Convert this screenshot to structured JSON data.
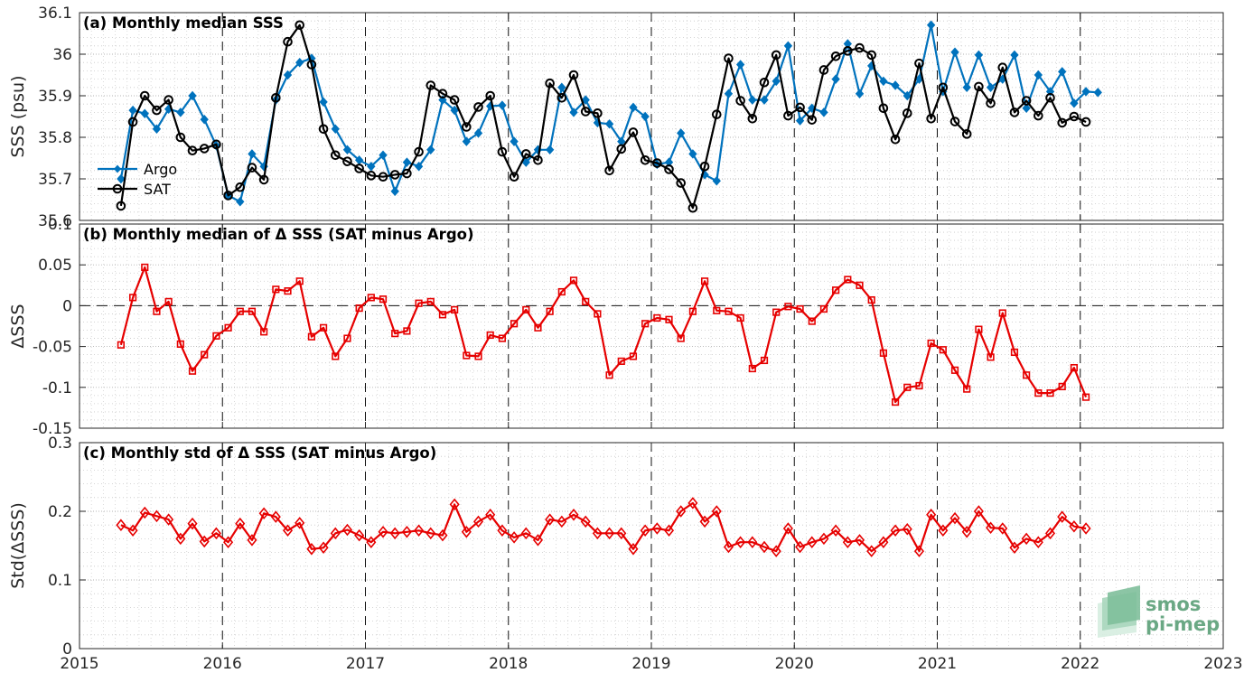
{
  "chart_data": [
    {
      "type": "line",
      "title": "(a) Monthly median SSS",
      "xlabel": "",
      "ylabel": "SSS (psu)",
      "xlim": [
        2015,
        2023
      ],
      "ylim": [
        35.6,
        36.1
      ],
      "xticks": [
        "2015",
        "2016",
        "2017",
        "2018",
        "2019",
        "2020",
        "2021",
        "2022",
        "2023"
      ],
      "yticks": [
        "35.6",
        "35.7",
        "35.8",
        "35.9",
        "36",
        "36.1"
      ],
      "grid": true,
      "legend": "bottom-left",
      "x_start": 2015.29,
      "x_step_months": 1,
      "series": [
        {
          "name": "Argo",
          "color": "#0072bd",
          "marker": "diamond",
          "values": [
            35.7,
            35.865,
            35.857,
            35.82,
            35.868,
            35.86,
            35.9,
            35.843,
            35.78,
            35.66,
            35.645,
            35.76,
            35.73,
            35.89,
            35.95,
            35.98,
            35.99,
            35.885,
            35.82,
            35.77,
            35.745,
            35.73,
            35.757,
            35.67,
            35.74,
            35.73,
            35.77,
            35.89,
            35.865,
            35.79,
            35.81,
            35.875,
            35.877,
            35.79,
            35.74,
            35.77,
            35.77,
            35.92,
            35.86,
            35.89,
            35.835,
            35.832,
            35.79,
            35.872,
            35.85,
            35.735,
            35.74,
            35.81,
            35.76,
            35.71,
            35.695,
            35.905,
            35.975,
            35.89,
            35.89,
            35.935,
            36.02,
            35.84,
            35.87,
            35.86,
            35.94,
            36.025,
            35.905,
            35.972,
            35.935,
            35.925,
            35.9,
            35.94,
            36.07,
            35.91,
            36.005,
            35.92,
            35.998,
            35.92,
            35.94,
            35.998,
            35.87,
            35.95,
            35.91,
            35.958,
            35.882,
            35.91,
            35.908
          ]
        },
        {
          "name": "SAT",
          "color": "#000000",
          "marker": "circle",
          "values": [
            35.635,
            35.837,
            35.9,
            35.865,
            35.89,
            35.8,
            35.768,
            35.773,
            35.783,
            35.66,
            35.68,
            35.727,
            35.698,
            35.895,
            36.03,
            36.07,
            35.975,
            35.82,
            35.757,
            35.742,
            35.725,
            35.708,
            35.705,
            35.71,
            35.713,
            35.765,
            35.925,
            35.905,
            35.89,
            35.825,
            35.873,
            35.9,
            35.765,
            35.705,
            35.76,
            35.745,
            35.93,
            35.895,
            35.95,
            35.862,
            35.858,
            35.72,
            35.772,
            35.812,
            35.745,
            35.738,
            35.723,
            35.69,
            35.63,
            35.73,
            35.855,
            35.99,
            35.888,
            35.845,
            35.932,
            35.998,
            35.852,
            35.872,
            35.842,
            35.962,
            35.995,
            36.008,
            36.015,
            35.998,
            35.87,
            35.795,
            35.858,
            35.978,
            35.845,
            35.92,
            35.838,
            35.808,
            35.922,
            35.882,
            35.968,
            35.86,
            35.888,
            35.852,
            35.895,
            35.835,
            35.85,
            35.837
          ]
        }
      ]
    },
    {
      "type": "line",
      "title": "(b) Monthly median of Δ SSS (SAT minus Argo)",
      "xlabel": "",
      "ylabel": "ΔSSS",
      "xlim": [
        2015,
        2023
      ],
      "ylim": [
        -0.15,
        0.1
      ],
      "yticks": [
        "-0.15",
        "-0.1",
        "-0.05",
        "0",
        "0.05",
        "0.1"
      ],
      "grid": true,
      "reference_line": 0,
      "x_start": 2015.29,
      "x_step_months": 1,
      "series": [
        {
          "color": "#e60000",
          "marker": "square",
          "values": [
            -0.048,
            0.01,
            0.047,
            -0.007,
            0.005,
            -0.047,
            -0.08,
            -0.06,
            -0.037,
            -0.027,
            -0.007,
            -0.007,
            -0.032,
            0.02,
            0.018,
            0.03,
            -0.038,
            -0.027,
            -0.062,
            -0.04,
            -0.003,
            0.01,
            0.008,
            -0.034,
            -0.031,
            0.003,
            0.005,
            -0.011,
            -0.005,
            -0.061,
            -0.062,
            -0.036,
            -0.04,
            -0.022,
            -0.005,
            -0.027,
            -0.007,
            0.017,
            0.031,
            0.005,
            -0.01,
            -0.085,
            -0.068,
            -0.062,
            -0.022,
            -0.015,
            -0.017,
            -0.04,
            -0.007,
            0.03,
            -0.006,
            -0.007,
            -0.015,
            -0.077,
            -0.067,
            -0.008,
            -0.001,
            -0.004,
            -0.019,
            -0.004,
            0.019,
            0.032,
            0.025,
            0.007,
            -0.058,
            -0.118,
            -0.1,
            -0.098,
            -0.046,
            -0.054,
            -0.079,
            -0.102,
            -0.029,
            -0.063,
            -0.009,
            -0.057,
            -0.085,
            -0.107,
            -0.107,
            -0.099,
            -0.076,
            -0.112
          ]
        }
      ]
    },
    {
      "type": "line",
      "title": "(c) Monthly std of Δ SSS (SAT minus Argo)",
      "xlabel": "",
      "ylabel": "Std(ΔSSS)",
      "xlim": [
        2015,
        2023
      ],
      "ylim": [
        0,
        0.3
      ],
      "yticks": [
        "0",
        "0.1",
        "0.2",
        "0.3"
      ],
      "grid": true,
      "x_start": 2015.29,
      "x_step_months": 1,
      "series": [
        {
          "color": "#e60000",
          "marker": "diamond-open",
          "values": [
            0.18,
            0.172,
            0.198,
            0.193,
            0.188,
            0.16,
            0.182,
            0.156,
            0.168,
            0.155,
            0.182,
            0.158,
            0.197,
            0.192,
            0.172,
            0.183,
            0.145,
            0.147,
            0.168,
            0.173,
            0.165,
            0.155,
            0.17,
            0.168,
            0.17,
            0.172,
            0.168,
            0.165,
            0.21,
            0.17,
            0.185,
            0.195,
            0.172,
            0.162,
            0.168,
            0.158,
            0.188,
            0.185,
            0.195,
            0.185,
            0.168,
            0.168,
            0.168,
            0.145,
            0.172,
            0.175,
            0.172,
            0.2,
            0.212,
            0.185,
            0.2,
            0.148,
            0.155,
            0.155,
            0.148,
            0.142,
            0.175,
            0.148,
            0.155,
            0.16,
            0.172,
            0.155,
            0.158,
            0.142,
            0.155,
            0.172,
            0.174,
            0.142,
            0.195,
            0.172,
            0.19,
            0.17,
            0.2,
            0.176,
            0.175,
            0.147,
            0.16,
            0.155,
            0.168,
            0.192,
            0.178,
            0.175
          ]
        }
      ]
    }
  ],
  "logo": {
    "line1": "smos",
    "line2": "pi-mep",
    "color": "#6aa884"
  }
}
